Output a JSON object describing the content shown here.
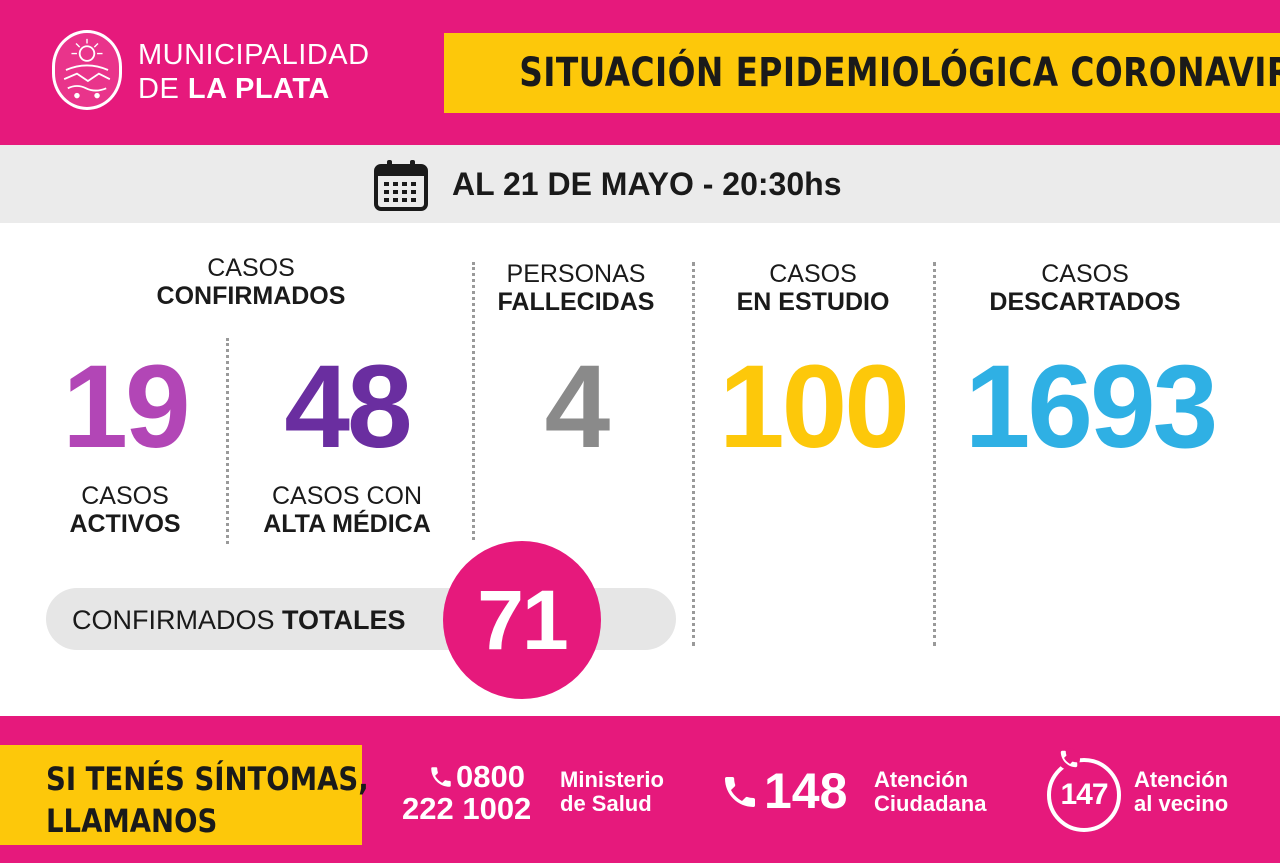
{
  "header": {
    "org_line1": "MUNICIPALIDAD",
    "org_line2_prefix": "DE",
    "org_line2_bold": "LA PLATA",
    "title": "SITUACIÓN EPIDEMIOLÓGICA CORONAVIRUS"
  },
  "date": {
    "text": "AL 21 DE MAYO - 20:30hs",
    "icon": "calendar-icon"
  },
  "stats": {
    "confirmados": {
      "line1": "CASOS",
      "line2": "CONFIRMADOS"
    },
    "activos": {
      "value": "19",
      "line1": "CASOS",
      "line2": "ACTIVOS",
      "color": "#b246b6"
    },
    "alta": {
      "value": "48",
      "line1": "CASOS CON",
      "line2": "ALTA MÉDICA",
      "color": "#6a2ea0"
    },
    "fallecidas": {
      "value": "4",
      "line1": "PERSONAS",
      "line2": "FALLECIDAS",
      "color": "#8a8a8a"
    },
    "estudio": {
      "value": "100",
      "line1": "CASOS",
      "line2": "EN ESTUDIO",
      "color": "#fdc80a"
    },
    "descartados": {
      "value": "1693",
      "line1": "CASOS",
      "line2": "DESCARTADOS",
      "color": "#2fb0e4"
    }
  },
  "totals": {
    "label_regular": "CONFIRMADOS",
    "label_bold": "TOTALES",
    "value": "71"
  },
  "footer": {
    "symptoms_line1": "SI TENÉS SÍNTOMAS,",
    "symptoms_line2": "LLAMANOS",
    "ministerio": {
      "number_line1": "0800",
      "number_line2": "222 1002",
      "label_line1": "Ministerio",
      "label_line2": "de Salud",
      "icon": "phone-icon"
    },
    "atencion_ciudadana": {
      "number": "148",
      "label_line1": "Atención",
      "label_line2": "Ciudadana",
      "icon": "phone-icon"
    },
    "atencion_vecino": {
      "number": "147",
      "label_line1": "Atención",
      "label_line2": "al vecino",
      "icon": "phone-icon"
    }
  },
  "colors": {
    "magenta": "#e6197c",
    "yellow": "#fdc80a",
    "light_gray": "#ebebeb"
  }
}
